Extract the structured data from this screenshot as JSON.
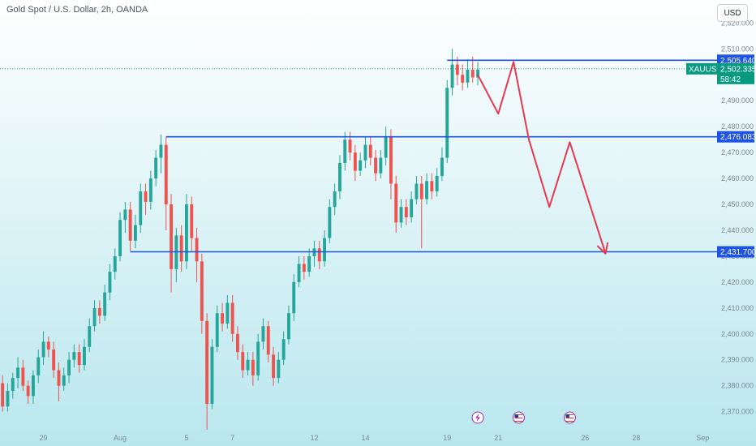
{
  "header": {
    "symbol_title": "Gold Spot / U.S. Dollar, 2h, OANDA",
    "currency_button": "USD"
  },
  "colors": {
    "bg_top": "#ffffff",
    "bg_bottom": "#b9e7ee",
    "up": "#26a69a",
    "down": "#ef5350",
    "level_line": "#1e53e5",
    "projection": "#e8384f",
    "price_tag": "#089981"
  },
  "chart_data": {
    "type": "candlestick",
    "title": "Gold Spot / U.S. Dollar, 2h, OANDA",
    "ylim": [
      2363,
      2522
    ],
    "y_ticks": [
      "2,370.000",
      "2,380.000",
      "2,390.000",
      "2,400.000",
      "2,410.000",
      "2,420.000",
      "2,430.000",
      "2,440.000",
      "2,450.000",
      "2,460.000",
      "2,470.000",
      "2,480.000",
      "2,490.000",
      "2,500.000",
      "2,510.000",
      "2,520.000"
    ],
    "y_tick_values": [
      2370,
      2380,
      2390,
      2400,
      2410,
      2420,
      2430,
      2440,
      2450,
      2460,
      2470,
      2480,
      2490,
      2500,
      2510,
      2520
    ],
    "x_labels": [
      "29",
      "Aug",
      "5",
      "7",
      "12",
      "14",
      "19",
      "21",
      "26",
      "28",
      "Sep"
    ],
    "x_label_index": [
      8,
      23,
      36,
      45,
      61,
      71,
      87,
      97,
      114,
      124,
      137
    ],
    "xlim": [
      0,
      140
    ],
    "levels": [
      {
        "label": "2,505.640",
        "value": 2505.64,
        "from_index": 87
      },
      {
        "label": "2,476.083",
        "value": 2476.083,
        "from_index": 32
      },
      {
        "label": "2,431.700",
        "value": 2431.7,
        "from_index": 25
      }
    ],
    "current_price": {
      "symbol": "XAUUSD",
      "value_label": "2,502.335",
      "value": 2502.335,
      "countdown": "58:42"
    },
    "projection_path": [
      [
        93,
        2500
      ],
      [
        97,
        2485
      ],
      [
        100,
        2505
      ],
      [
        103,
        2475
      ],
      [
        107,
        2449
      ],
      [
        111,
        2474
      ],
      [
        118,
        2431
      ]
    ],
    "event_markers": [
      {
        "index": 93,
        "icon": "lightning-icon"
      },
      {
        "index": 101,
        "icon": "us-flag-icon"
      },
      {
        "index": 111,
        "icon": "us-flag-icon"
      }
    ],
    "candles": [
      [
        2381,
        2372,
        2384,
        2370
      ],
      [
        2372,
        2378,
        2381,
        2370
      ],
      [
        2378,
        2383,
        2385,
        2375
      ],
      [
        2383,
        2387,
        2391,
        2379
      ],
      [
        2387,
        2380,
        2390,
        2378
      ],
      [
        2380,
        2376,
        2382,
        2373
      ],
      [
        2376,
        2384,
        2386,
        2373
      ],
      [
        2384,
        2391,
        2394,
        2381
      ],
      [
        2391,
        2397,
        2401,
        2388
      ],
      [
        2397,
        2394,
        2399,
        2391
      ],
      [
        2394,
        2386,
        2397,
        2383
      ],
      [
        2386,
        2380,
        2389,
        2374
      ],
      [
        2380,
        2384,
        2387,
        2378
      ],
      [
        2384,
        2390,
        2393,
        2381
      ],
      [
        2390,
        2393,
        2396,
        2387
      ],
      [
        2393,
        2388,
        2396,
        2385
      ],
      [
        2388,
        2395,
        2398,
        2386
      ],
      [
        2395,
        2403,
        2406,
        2393
      ],
      [
        2403,
        2410,
        2413,
        2401
      ],
      [
        2410,
        2407,
        2413,
        2404
      ],
      [
        2407,
        2416,
        2419,
        2405
      ],
      [
        2416,
        2424,
        2427,
        2413
      ],
      [
        2424,
        2430,
        2433,
        2421
      ],
      [
        2430,
        2444,
        2447,
        2428
      ],
      [
        2444,
        2448,
        2451,
        2439
      ],
      [
        2448,
        2436,
        2451,
        2432
      ],
      [
        2436,
        2442,
        2446,
        2433
      ],
      [
        2442,
        2455,
        2458,
        2439
      ],
      [
        2455,
        2451,
        2458,
        2446
      ],
      [
        2451,
        2460,
        2463,
        2448
      ],
      [
        2460,
        2468,
        2471,
        2457
      ],
      [
        2468,
        2473,
        2477,
        2462
      ],
      [
        2473,
        2450,
        2476,
        2440
      ],
      [
        2450,
        2425,
        2454,
        2416
      ],
      [
        2425,
        2438,
        2441,
        2420
      ],
      [
        2438,
        2428,
        2442,
        2424
      ],
      [
        2428,
        2450,
        2454,
        2425
      ],
      [
        2450,
        2437,
        2453,
        2432
      ],
      [
        2437,
        2428,
        2441,
        2420
      ],
      [
        2428,
        2405,
        2431,
        2400
      ],
      [
        2405,
        2373,
        2408,
        2363
      ],
      [
        2373,
        2395,
        2398,
        2371
      ],
      [
        2395,
        2408,
        2411,
        2393
      ],
      [
        2408,
        2404,
        2412,
        2401
      ],
      [
        2404,
        2412,
        2415,
        2402
      ],
      [
        2412,
        2400,
        2415,
        2397
      ],
      [
        2400,
        2393,
        2403,
        2390
      ],
      [
        2393,
        2386,
        2396,
        2383
      ],
      [
        2386,
        2390,
        2393,
        2384
      ],
      [
        2390,
        2384,
        2393,
        2380
      ],
      [
        2384,
        2397,
        2400,
        2382
      ],
      [
        2397,
        2403,
        2406,
        2394
      ],
      [
        2403,
        2392,
        2405,
        2389
      ],
      [
        2392,
        2383,
        2395,
        2380
      ],
      [
        2383,
        2390,
        2393,
        2381
      ],
      [
        2390,
        2398,
        2401,
        2388
      ],
      [
        2398,
        2408,
        2411,
        2396
      ],
      [
        2408,
        2420,
        2423,
        2405
      ],
      [
        2420,
        2427,
        2430,
        2418
      ],
      [
        2427,
        2424,
        2430,
        2421
      ],
      [
        2424,
        2430,
        2433,
        2422
      ],
      [
        2430,
        2433,
        2436,
        2426
      ],
      [
        2433,
        2428,
        2436,
        2425
      ],
      [
        2428,
        2437,
        2440,
        2426
      ],
      [
        2437,
        2449,
        2452,
        2435
      ],
      [
        2449,
        2455,
        2458,
        2446
      ],
      [
        2455,
        2466,
        2469,
        2452
      ],
      [
        2466,
        2475,
        2478,
        2463
      ],
      [
        2475,
        2470,
        2478,
        2467
      ],
      [
        2470,
        2463,
        2473,
        2459
      ],
      [
        2463,
        2467,
        2470,
        2461
      ],
      [
        2467,
        2473,
        2476,
        2464
      ],
      [
        2473,
        2468,
        2476,
        2465
      ],
      [
        2468,
        2462,
        2471,
        2459
      ],
      [
        2462,
        2468,
        2471,
        2460
      ],
      [
        2468,
        2476,
        2480,
        2465
      ],
      [
        2476,
        2458,
        2479,
        2452
      ],
      [
        2458,
        2443,
        2461,
        2439
      ],
      [
        2443,
        2449,
        2452,
        2441
      ],
      [
        2449,
        2445,
        2452,
        2442
      ],
      [
        2445,
        2452,
        2455,
        2443
      ],
      [
        2452,
        2458,
        2461,
        2450
      ],
      [
        2458,
        2452,
        2461,
        2433
      ],
      [
        2452,
        2459,
        2462,
        2450
      ],
      [
        2459,
        2455,
        2462,
        2452
      ],
      [
        2455,
        2461,
        2464,
        2453
      ],
      [
        2461,
        2468,
        2472,
        2459
      ],
      [
        2468,
        2495,
        2498,
        2466
      ],
      [
        2495,
        2504,
        2510,
        2492
      ],
      [
        2504,
        2500,
        2507,
        2496
      ],
      [
        2500,
        2497,
        2504,
        2494
      ],
      [
        2497,
        2502,
        2506,
        2495
      ],
      [
        2502,
        2499,
        2507,
        2497
      ],
      [
        2499,
        2502,
        2505,
        2496
      ]
    ]
  }
}
